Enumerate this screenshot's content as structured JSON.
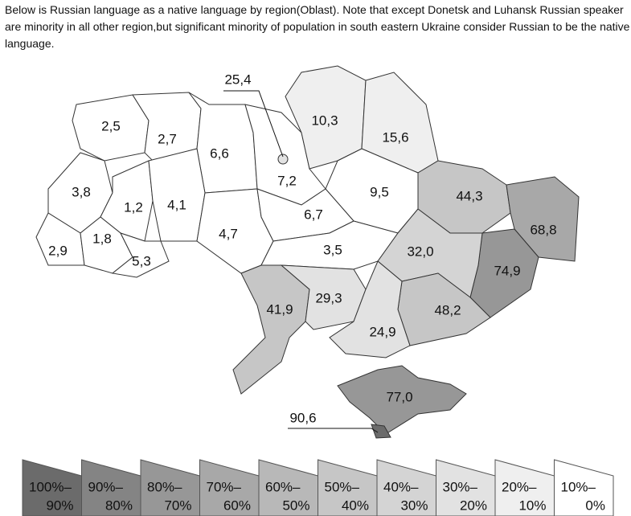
{
  "description": "Below is Russian language as a native language by region(Oblast). Note that except Donetsk and Luhansk Russian speaker are minority in all other region,but significant minority of population in south eastern Ukraine consider Russian to be the native language.",
  "regions": [
    {
      "label": "2,5"
    },
    {
      "label": "2,7"
    },
    {
      "label": "6,6"
    },
    {
      "label": "7,2"
    },
    {
      "label": "25,4"
    },
    {
      "label": "10,3"
    },
    {
      "label": "15,6"
    },
    {
      "label": "9,5"
    },
    {
      "label": "44,3"
    },
    {
      "label": "68,8"
    },
    {
      "label": "74,9"
    },
    {
      "label": "3,8"
    },
    {
      "label": "1,2"
    },
    {
      "label": "4,1"
    },
    {
      "label": "4,7"
    },
    {
      "label": "6,7"
    },
    {
      "label": "2,9"
    },
    {
      "label": "1,8"
    },
    {
      "label": "5,3"
    },
    {
      "label": "3,5"
    },
    {
      "label": "32,0"
    },
    {
      "label": "41,9"
    },
    {
      "label": "29,3"
    },
    {
      "label": "48,2"
    },
    {
      "label": "24,9"
    },
    {
      "label": "77,0"
    },
    {
      "label": "90,6"
    }
  ],
  "legend": [
    {
      "top": "100%–",
      "bottom": "90%"
    },
    {
      "top": "90%–",
      "bottom": "80%"
    },
    {
      "top": "80%–",
      "bottom": "70%"
    },
    {
      "top": "70%–",
      "bottom": "60%"
    },
    {
      "top": "60%–",
      "bottom": "50%"
    },
    {
      "top": "50%–",
      "bottom": "40%"
    },
    {
      "top": "40%–",
      "bottom": "30%"
    },
    {
      "top": "30%–",
      "bottom": "20%"
    },
    {
      "top": "20%–",
      "bottom": "10%"
    },
    {
      "top": "10%–",
      "bottom": "0%"
    }
  ]
}
